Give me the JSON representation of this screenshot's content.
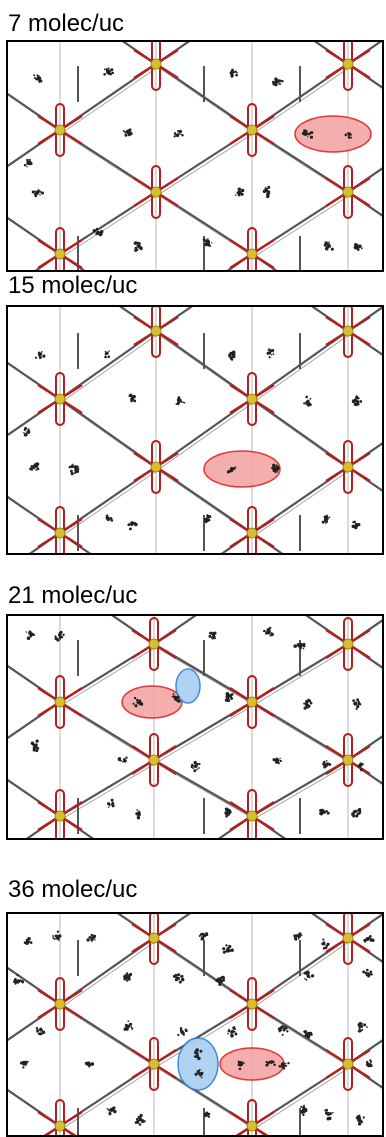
{
  "panels": [
    {
      "title": "7 molec/uc"
    },
    {
      "title": "15 molec/uc"
    },
    {
      "title": "21 molec/uc"
    },
    {
      "title": "36 molec/uc"
    }
  ],
  "colors": {
    "framework": "#555555",
    "linker": "#b02020",
    "node": "#d6c030",
    "molecule": "#222222",
    "highlight_red_fill": "#f4a6a6",
    "highlight_red_stroke": "#e02020",
    "highlight_blue_fill": "#a8cff0",
    "highlight_blue_stroke": "#2f7fd6"
  }
}
